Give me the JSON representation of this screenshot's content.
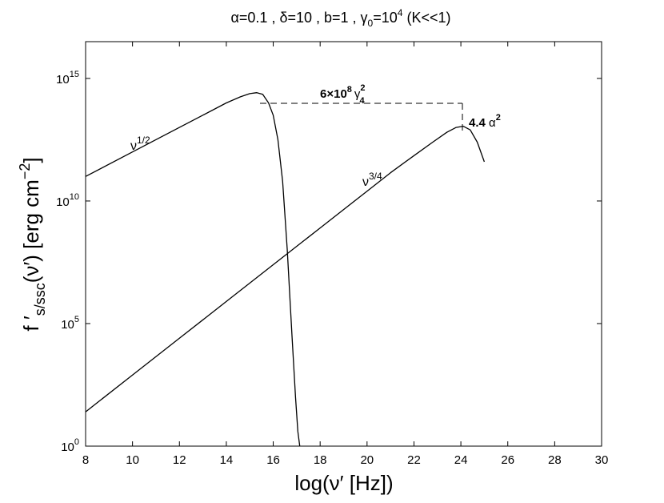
{
  "chart_data": {
    "type": "line",
    "title": "α=0.1 , δ=10 , b=1 , γ",
    "title_sub": "0",
    "title_mid": "=10",
    "title_sup": "4",
    "title_tail": " (K<<1)",
    "xlabel": "log(ν′  [Hz])",
    "ylabel_main": "f ′",
    "ylabel_sub": "s/ssc",
    "ylabel_tail": "(ν′)  [erg cm",
    "ylabel_sup": "−2",
    "ylabel_close": "]",
    "xlim": [
      8,
      30
    ],
    "ylim_log10": [
      0,
      16.5
    ],
    "yscale": "log",
    "grid": false,
    "x_ticks": [
      "8",
      "10",
      "12",
      "14",
      "16",
      "18",
      "20",
      "22",
      "24",
      "26",
      "28",
      "30"
    ],
    "y_ticks": [
      {
        "base": "10",
        "exp": "0",
        "log10": 0
      },
      {
        "base": "10",
        "exp": "5",
        "log10": 5
      },
      {
        "base": "10",
        "exp": "10",
        "log10": 10
      },
      {
        "base": "10",
        "exp": "15",
        "log10": 15
      }
    ],
    "series": [
      {
        "name": "",
        "x": [
          8,
          10,
          12,
          13,
          14,
          14.6,
          15.0,
          15.3,
          15.55,
          15.8,
          16.0,
          16.2,
          16.4,
          16.6,
          16.8,
          16.95,
          17.05,
          17.13
        ],
        "log10_y": [
          11.0,
          12.0,
          13.0,
          13.5,
          14.0,
          14.25,
          14.38,
          14.42,
          14.35,
          14.0,
          13.5,
          12.5,
          10.8,
          8.0,
          4.5,
          2.0,
          0.6,
          0
        ]
      },
      {
        "name": "",
        "x": [
          8,
          10,
          12,
          14,
          16,
          18,
          20,
          21,
          22,
          22.8,
          23.4,
          23.8,
          24.1,
          24.4,
          24.7,
          25.0
        ],
        "log10_y": [
          1.4,
          2.9,
          4.4,
          5.9,
          7.4,
          8.9,
          10.4,
          11.15,
          11.85,
          12.4,
          12.8,
          13.0,
          13.05,
          12.9,
          12.4,
          11.6
        ]
      }
    ],
    "annotations": {
      "slope1": {
        "base": "ν",
        "sup": "1/2"
      },
      "slope2": {
        "base": "ν",
        "sup": "3/4"
      },
      "gap_horizontal": {
        "prefix": "6×10",
        "sup": "8",
        "greek": "γ",
        "greek_sub": "4",
        "greek_sup": "2"
      },
      "gap_vertical": {
        "prefix": "4.4 ",
        "greek": "α",
        "greek_sup": "2"
      }
    }
  }
}
